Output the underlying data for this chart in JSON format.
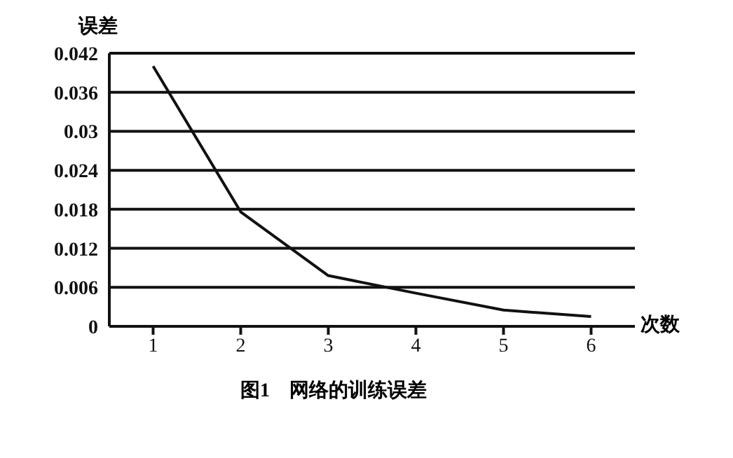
{
  "chart_data": {
    "type": "line",
    "ylabel": "误差",
    "xlabel": "次数",
    "annotations": [
      "图1　网络的训练误差"
    ],
    "categories": [
      "1",
      "2",
      "3",
      "4",
      "5",
      "6"
    ],
    "series": [
      {
        "color": "#111111",
        "values": [
          0.04,
          0.0176,
          0.0078,
          0.0051,
          0.0025,
          0.0015
        ]
      }
    ],
    "ylim": [
      0,
      0.042
    ],
    "yticks": [
      0,
      0.006,
      0.012,
      0.018,
      0.024,
      0.03,
      0.036,
      0.042
    ],
    "grid": "y",
    "marker": "none",
    "line_style": "solid"
  }
}
